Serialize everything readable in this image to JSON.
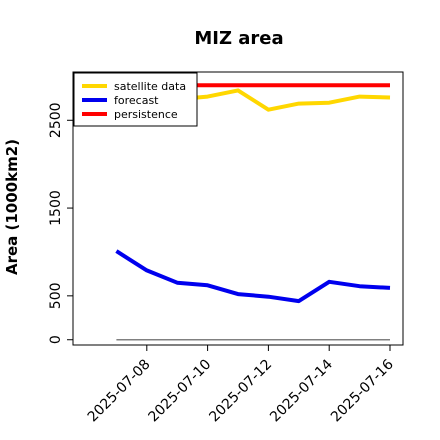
{
  "chart_data": {
    "type": "line",
    "title": "MIZ area",
    "xlabel": "",
    "ylabel": "Area (1000km2)",
    "x": [
      "2025-07-07",
      "2025-07-08",
      "2025-07-09",
      "2025-07-10",
      "2025-07-11",
      "2025-07-12",
      "2025-07-13",
      "2025-07-14",
      "2025-07-15",
      "2025-07-16"
    ],
    "x_tick_labels": [
      "2025-07-08",
      "2025-07-10",
      "2025-07-12",
      "2025-07-14",
      "2025-07-16"
    ],
    "highlight_tick": "2025-07-08",
    "y_ticks": [
      0,
      500,
      1500,
      2500
    ],
    "ylim": [
      -60,
      3050
    ],
    "xlim": [
      "2025-07-06",
      "2025-07-16"
    ],
    "series": [
      {
        "name": "satellite data",
        "color": "#FFD700",
        "values": [
          2720,
          2700,
          2740,
          2770,
          2840,
          2620,
          2690,
          2700,
          2770,
          2760
        ]
      },
      {
        "name": "forecast",
        "color": "#0000EE",
        "values": [
          1010,
          790,
          650,
          620,
          520,
          490,
          440,
          660,
          610,
          590
        ]
      },
      {
        "name": "persistence",
        "color": "#FF0000",
        "values": [
          2900,
          2900,
          2900,
          2900,
          2900,
          2900,
          2900,
          2900,
          2900,
          2900
        ]
      }
    ],
    "reference_line": {
      "value": 0,
      "color": "#808080"
    },
    "legend_position": "top-left",
    "grid": false
  }
}
